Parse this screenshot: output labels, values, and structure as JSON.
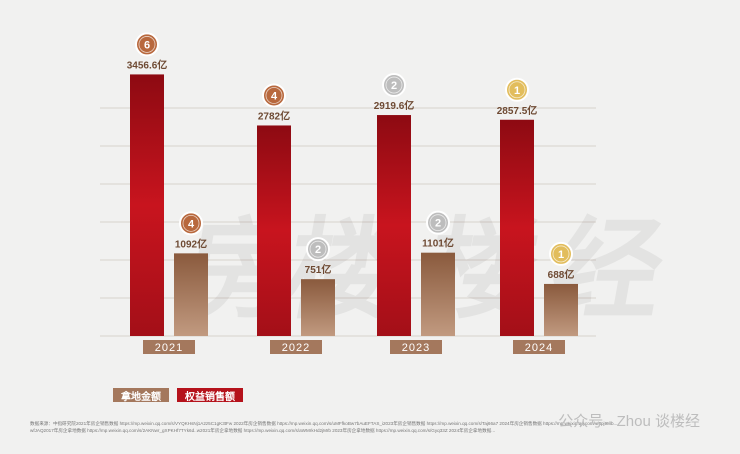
{
  "chart_data": {
    "type": "bar",
    "categories": [
      "2021",
      "2022",
      "2023",
      "2024"
    ],
    "series": [
      {
        "name": "拿地金额",
        "values": [
          1092,
          751,
          1101,
          688
        ],
        "labels": [
          "1092亿",
          "751亿",
          "1101亿",
          "688亿"
        ],
        "ranks": [
          4,
          2,
          2,
          1
        ],
        "color": "#a4785d"
      },
      {
        "name": "权益销售额",
        "values": [
          3456.6,
          2782,
          2919.6,
          2857.5
        ],
        "labels": [
          "3456.6亿",
          "2782亿",
          "2919.6亿",
          "2857.5亿"
        ],
        "ranks": [
          6,
          4,
          2,
          1
        ],
        "color": "#b5121b"
      }
    ],
    "ylim": [
      0,
      3700
    ],
    "grid": true,
    "legend_position": "bottom-left",
    "medal_colors": {
      "1": "#e2bd5c",
      "2": "#bdbdbd",
      "4": "#b8683d",
      "6": "#b8683d"
    }
  },
  "footer": {
    "line1": "数据来源：中指研究院2021年房企销售数据 https://mp.weixin.qq.com/s/VYQKHsNj1A2z5C1gK3tFw 2022年房企销售数据 https://mp.weixin.qq.com/s/uMFfkoBw7bAuEFTAS_i2023年房企销售数据 https://mp.weixin.qq.com/s/Taj66a7 2024年房企销售数据 https://mp.weixin.qq.com/s/8pj9Mb...",
    "line2": "wfJAQ2017年房企拿地数据 https://mp.weixin.qq.com/s/2AKNwr_gXPKHf7TYk6d..w2021年房企拿地数据 https://mp.weixin.qq.com/s/aWMrkHd2jMrb 2023年房企拿地数据 https://mp.weixin.qq.com/s/Gyq33Z 2024年房企拿地数据..."
  },
  "brand": "公众号 · Zhou 谈楼经"
}
